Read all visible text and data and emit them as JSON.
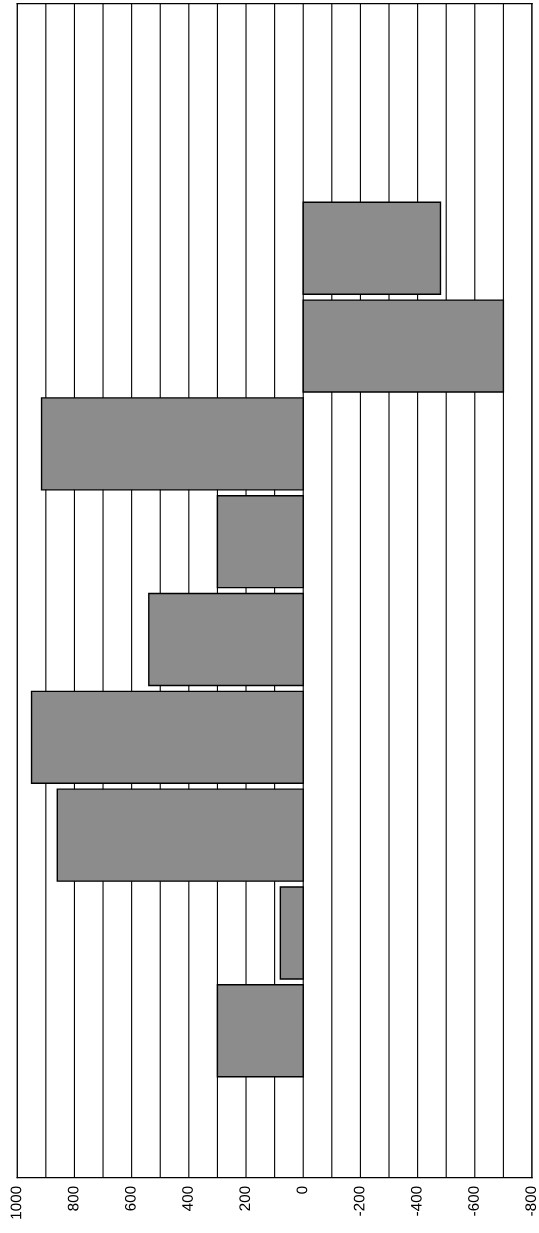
{
  "chart_data": {
    "type": "bar",
    "orientation": "horizontal",
    "categories": [
      null,
      null,
      null,
      null,
      null,
      null,
      null,
      null,
      null,
      null,
      null,
      null
    ],
    "values": [
      null,
      null,
      -480,
      -700,
      915,
      300,
      540,
      950,
      860,
      80,
      300,
      null
    ],
    "color": "#8c8c8c",
    "xlim": [
      1000,
      -800
    ],
    "xticks": [
      1000,
      {
        "value": 900,
        "label": null
      },
      800,
      {
        "value": 700,
        "label": null
      },
      600,
      {
        "value": 500,
        "label": null
      },
      400,
      {
        "value": 300,
        "label": null
      },
      200,
      {
        "value": 100,
        "label": null
      },
      0,
      {
        "value": -100,
        "label": null
      },
      -200,
      {
        "value": -300,
        "label": null
      },
      -400,
      {
        "value": -500,
        "label": null
      },
      -600,
      {
        "value": -700,
        "label": null
      },
      -800
    ],
    "grid": "x"
  }
}
